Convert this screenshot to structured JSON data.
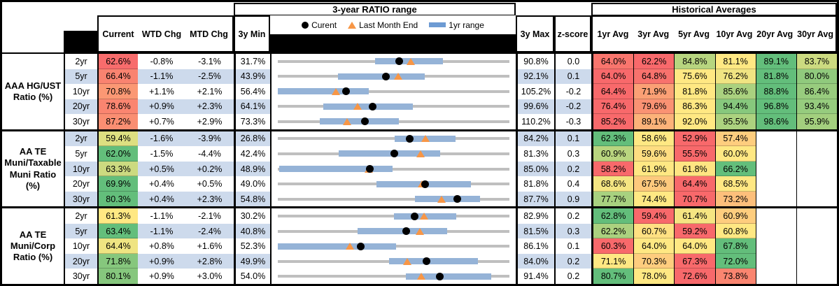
{
  "header": {
    "range_title": "3-year RATIO range",
    "hist_title": "Historical Averages",
    "col_current": "Current",
    "col_wtd": "WTD Chg",
    "col_mtd": "MTD Chg",
    "col_min": "3y Min",
    "col_max": "3y Max",
    "col_z": "z-score",
    "avg_cols": [
      "1yr Avg",
      "3yr Avg",
      "5yr Avg",
      "10yr Avg",
      "20yr Avg",
      "30yr Avg"
    ],
    "legend": {
      "current": "Curent",
      "last": "Last Month End",
      "range": "1yr range"
    }
  },
  "colors": {
    "stripe": "#CDDAEC",
    "bar": "#95B3D7",
    "line": "#BFBFBF",
    "dot": "#000000",
    "triangle": "#F79646",
    "legend_dash": "#6D9BD3",
    "heat_min": "#F8696B",
    "heat_mid": "#FFE883",
    "heat_max": "#63BE7B"
  },
  "chart_data": {
    "type": "table",
    "note": "dot=Current, triangle=Last Month End, blue bar=1yr range, gray line=3y min-max range",
    "groups": [
      {
        "label": "AAA HG/UST\nRatio (%)",
        "rows": [
          {
            "tenor": "2yr",
            "current": 62.6,
            "wtd": -0.8,
            "mtd": -3.1,
            "min": 31.7,
            "max": 90.8,
            "z": 0.0,
            "last": 65.7,
            "r1lo": 56.6,
            "r1hi": 73.8,
            "avgs": [
              64.0,
              62.2,
              84.8,
              81.1,
              89.1,
              83.7
            ]
          },
          {
            "tenor": "5yr",
            "current": 66.4,
            "wtd": -1.1,
            "mtd": -2.5,
            "min": 43.9,
            "max": 92.1,
            "z": 0.1,
            "last": 68.9,
            "r1lo": 56.4,
            "r1hi": 74.5,
            "avgs": [
              64.0,
              64.8,
              75.6,
              76.2,
              81.8,
              80.0
            ]
          },
          {
            "tenor": "10yr",
            "current": 70.8,
            "wtd": 1.1,
            "mtd": 2.1,
            "min": 56.4,
            "max": 105.2,
            "z": -0.2,
            "last": 68.7,
            "r1lo": 56.4,
            "r1hi": 75.6,
            "avgs": [
              64.4,
              71.9,
              81.8,
              85.6,
              88.8,
              86.4
            ]
          },
          {
            "tenor": "20yr",
            "current": 78.6,
            "wtd": 0.9,
            "mtd": 2.3,
            "min": 64.1,
            "max": 99.6,
            "z": -0.2,
            "last": 76.3,
            "r1lo": 71.1,
            "r1hi": 84.8,
            "avgs": [
              76.4,
              79.6,
              86.3,
              94.4,
              96.8,
              93.4
            ]
          },
          {
            "tenor": "30yr",
            "current": 87.2,
            "wtd": 0.7,
            "mtd": 2.9,
            "min": 73.3,
            "max": 110.2,
            "z": -0.3,
            "last": 84.3,
            "r1lo": 80.0,
            "r1hi": 92.6,
            "avgs": [
              85.2,
              89.1,
              92.0,
              95.5,
              98.6,
              95.9
            ]
          }
        ]
      },
      {
        "label": "AA TE\nMuni/Taxable\nMuni Ratio\n(%)",
        "rows": [
          {
            "tenor": "2yr",
            "current": 59.4,
            "wtd": -1.6,
            "mtd": -3.9,
            "min": 26.8,
            "max": 84.2,
            "z": 0.1,
            "last": 63.3,
            "r1lo": 55.7,
            "r1hi": 70.8,
            "avgs": [
              62.3,
              58.6,
              52.9,
              57.4,
              null,
              null
            ]
          },
          {
            "tenor": "5yr",
            "current": 62.0,
            "wtd": -1.5,
            "mtd": -4.4,
            "min": 42.4,
            "max": 81.3,
            "z": 0.3,
            "last": 66.4,
            "r1lo": 52.6,
            "r1hi": 69.7,
            "avgs": [
              60.9,
              59.6,
              55.5,
              60.0,
              null,
              null
            ]
          },
          {
            "tenor": "10yr",
            "current": 63.3,
            "wtd": 0.5,
            "mtd": 0.2,
            "min": 48.9,
            "max": 85.0,
            "z": 0.2,
            "last": 63.1,
            "r1lo": 49.2,
            "r1hi": 66.8,
            "avgs": [
              58.2,
              61.9,
              61.8,
              66.2,
              null,
              null
            ]
          },
          {
            "tenor": "20yr",
            "current": 69.9,
            "wtd": 0.4,
            "mtd": 0.5,
            "min": 49.0,
            "max": 81.8,
            "z": 0.4,
            "last": 69.4,
            "r1lo": 63.0,
            "r1hi": 76.3,
            "avgs": [
              68.6,
              67.5,
              64.4,
              68.5,
              null,
              null
            ]
          },
          {
            "tenor": "30yr",
            "current": 80.3,
            "wtd": 0.4,
            "mtd": 2.3,
            "min": 54.8,
            "max": 87.7,
            "z": 0.9,
            "last": 78.0,
            "r1lo": 74.3,
            "r1hi": 83.5,
            "avgs": [
              77.7,
              74.4,
              70.7,
              73.2,
              null,
              null
            ]
          }
        ]
      },
      {
        "label": "AA TE\nMuni/Corp\nRatio (%)",
        "rows": [
          {
            "tenor": "2yr",
            "current": 61.3,
            "wtd": -1.1,
            "mtd": -2.1,
            "min": 30.2,
            "max": 82.9,
            "z": 0.2,
            "last": 63.4,
            "r1lo": 56.7,
            "r1hi": 70.8,
            "avgs": [
              62.8,
              59.4,
              61.4,
              60.9,
              null,
              null
            ]
          },
          {
            "tenor": "5yr",
            "current": 63.4,
            "wtd": -1.1,
            "mtd": -2.4,
            "min": 40.8,
            "max": 81.5,
            "z": 0.3,
            "last": 65.8,
            "r1lo": 54.8,
            "r1hi": 70.6,
            "avgs": [
              62.2,
              60.7,
              59.2,
              60.8,
              null,
              null
            ]
          },
          {
            "tenor": "10yr",
            "current": 64.4,
            "wtd": 0.8,
            "mtd": 1.6,
            "min": 52.3,
            "max": 86.1,
            "z": 0.1,
            "last": 62.8,
            "r1lo": 52.3,
            "r1hi": 69.6,
            "avgs": [
              60.3,
              64.0,
              64.0,
              67.8,
              null,
              null
            ]
          },
          {
            "tenor": "20yr",
            "current": 71.8,
            "wtd": 0.9,
            "mtd": 2.8,
            "min": 49.9,
            "max": 84.0,
            "z": 0.2,
            "last": 69.0,
            "r1lo": 66.3,
            "r1hi": 79.3,
            "avgs": [
              71.1,
              70.3,
              67.3,
              72.0,
              null,
              null
            ]
          },
          {
            "tenor": "30yr",
            "current": 80.1,
            "wtd": 0.9,
            "mtd": 3.0,
            "min": 54.0,
            "max": 91.4,
            "z": 0.2,
            "last": 77.1,
            "r1lo": 74.7,
            "r1hi": 88.4,
            "avgs": [
              80.7,
              78.0,
              72.6,
              73.8,
              null,
              null
            ]
          }
        ]
      }
    ]
  }
}
